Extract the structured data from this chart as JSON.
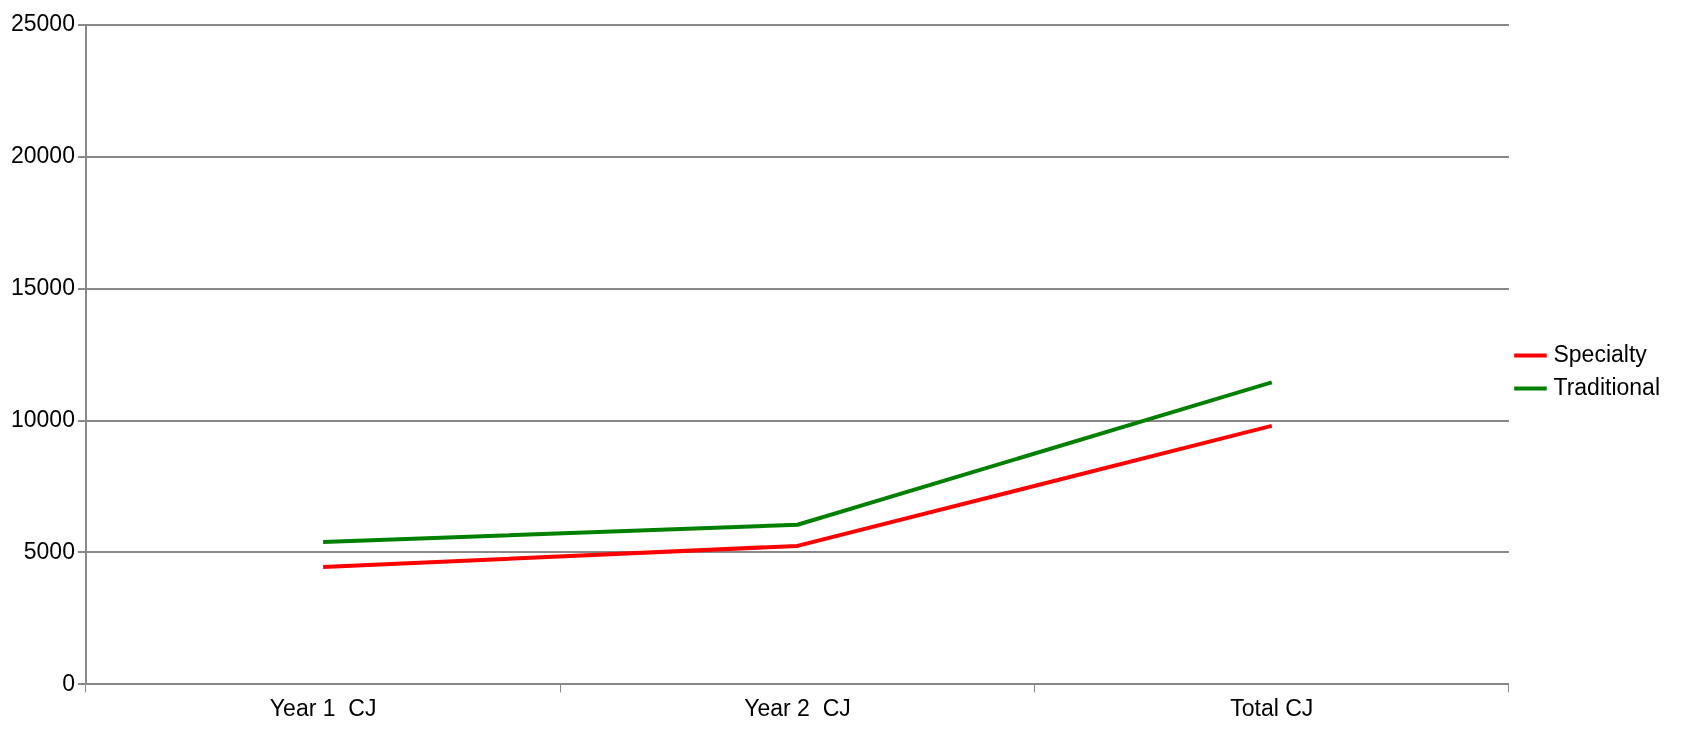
{
  "chart_data": {
    "type": "line",
    "categories": [
      "Year 1  CJ",
      "Year 2  CJ",
      "Total CJ"
    ],
    "series": [
      {
        "name": "Specialty",
        "color": "#ff0000",
        "values": [
          4450,
          5250,
          9800
        ]
      },
      {
        "name": "Traditional",
        "color": "#008000",
        "values": [
          5400,
          6050,
          11450
        ]
      }
    ],
    "ylim": [
      0,
      25000
    ],
    "yticks": [
      0,
      5000,
      10000,
      15000,
      20000,
      25000
    ],
    "grid": "y",
    "legend": "right",
    "marker": "none",
    "line_style": "solid"
  }
}
